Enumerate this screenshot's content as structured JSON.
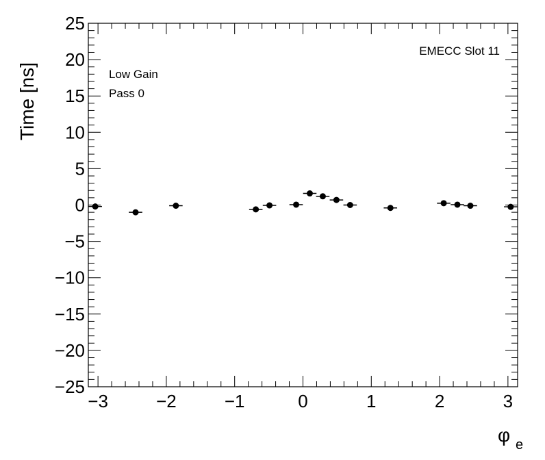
{
  "chart_data": {
    "type": "scatter",
    "title": "",
    "xlabel": "φ",
    "xlabel_subscript": "e",
    "ylabel": "Time [ns]",
    "xlim": [
      -3.1416,
      3.1416
    ],
    "ylim": [
      -25,
      25
    ],
    "x_major_ticks": [
      -3,
      -2,
      -1,
      0,
      1,
      2,
      3
    ],
    "x_tick_labels": [
      "−3",
      "−2",
      "−1",
      "0",
      "1",
      "2",
      "3"
    ],
    "y_major_ticks": [
      -25,
      -20,
      -15,
      -10,
      -5,
      0,
      5,
      10,
      15,
      20,
      25
    ],
    "y_tick_labels": [
      "−25",
      "−20",
      "−15",
      "−10",
      "−5",
      "0",
      "5",
      "10",
      "15",
      "20",
      "25"
    ],
    "grid": false,
    "annotations": {
      "slot": "EMECC Slot 11",
      "gain": "Low Gain",
      "pass": "Pass 0"
    },
    "series": [
      {
        "marker_color": "#000000",
        "x_halfwidth": 0.0982,
        "points": [
          {
            "x": -3.04,
            "y": -0.2
          },
          {
            "x": -2.45,
            "y": -1.0
          },
          {
            "x": -1.86,
            "y": -0.1
          },
          {
            "x": -0.69,
            "y": -0.6
          },
          {
            "x": -0.49,
            "y": -0.05
          },
          {
            "x": -0.1,
            "y": 0.05
          },
          {
            "x": 0.1,
            "y": 1.6
          },
          {
            "x": 0.29,
            "y": 1.2
          },
          {
            "x": 0.49,
            "y": 0.7
          },
          {
            "x": 0.69,
            "y": 0.0
          },
          {
            "x": 1.28,
            "y": -0.4
          },
          {
            "x": 2.06,
            "y": 0.25
          },
          {
            "x": 2.26,
            "y": 0.05
          },
          {
            "x": 2.45,
            "y": -0.1
          },
          {
            "x": 3.04,
            "y": -0.25
          }
        ]
      }
    ]
  }
}
